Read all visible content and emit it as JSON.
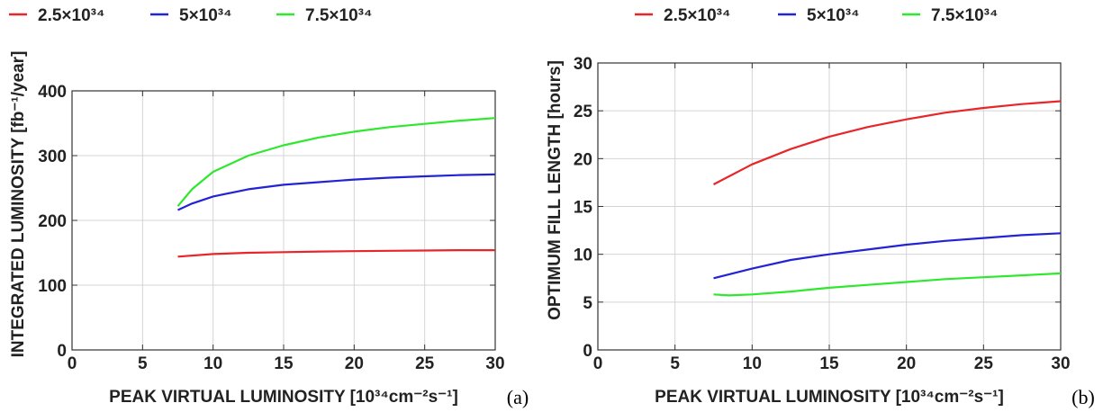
{
  "chart_data": [
    {
      "type": "line",
      "panel_label": "(a)",
      "xlabel": "PEAK VIRTUAL LUMINOSITY [10³⁴cm⁻²s⁻¹]",
      "ylabel": "INTEGRATED LUMINOSITY [fb⁻¹/year]",
      "xlim": [
        0,
        30
      ],
      "ylim": [
        0,
        400
      ],
      "xticks": [
        "0",
        "5",
        "10",
        "15",
        "20",
        "25",
        "30"
      ],
      "yticks": [
        "0",
        "100",
        "200",
        "300",
        "400"
      ],
      "grid": true,
      "legend_position": "top",
      "series": [
        {
          "name": "2.5×10³⁴",
          "color": "#e8262a",
          "x": [
            7.5,
            10,
            12.5,
            15,
            17.5,
            20,
            22.5,
            25,
            27.5,
            30
          ],
          "y": [
            144,
            148,
            150,
            151,
            152,
            152.5,
            153,
            153.5,
            154,
            154
          ]
        },
        {
          "name": "5×10³⁴",
          "color": "#2323d6",
          "x": [
            7.5,
            8.5,
            10,
            12.5,
            15,
            17.5,
            20,
            22.5,
            25,
            27.5,
            30
          ],
          "y": [
            216,
            226,
            237,
            248,
            255,
            259,
            263,
            266,
            268,
            270,
            271
          ]
        },
        {
          "name": "7.5×10³⁴",
          "color": "#2ee82e",
          "x": [
            7.5,
            8.5,
            10,
            12.5,
            15,
            17.5,
            20,
            22.5,
            25,
            27.5,
            30
          ],
          "y": [
            222,
            248,
            275,
            300,
            316,
            328,
            337,
            344,
            349,
            354,
            358
          ]
        }
      ]
    },
    {
      "type": "line",
      "panel_label": "(b)",
      "xlabel": "PEAK VIRTUAL LUMINOSITY [10³⁴cm⁻²s⁻¹]",
      "ylabel": "OPTIMUM FILL LENGTH [hours]",
      "xlim": [
        0,
        30
      ],
      "ylim": [
        0,
        30
      ],
      "xticks": [
        "0",
        "5",
        "10",
        "15",
        "20",
        "25",
        "30"
      ],
      "yticks": [
        "0",
        "5",
        "10",
        "15",
        "20",
        "25",
        "30"
      ],
      "grid": true,
      "legend_position": "top",
      "series": [
        {
          "name": "2.5×10³⁴",
          "color": "#e8262a",
          "x": [
            7.5,
            10,
            12.5,
            15,
            17.5,
            20,
            22.5,
            25,
            27.5,
            30
          ],
          "y": [
            17.3,
            19.4,
            21.0,
            22.3,
            23.3,
            24.1,
            24.8,
            25.3,
            25.7,
            26.0
          ]
        },
        {
          "name": "5×10³⁴",
          "color": "#2323d6",
          "x": [
            7.5,
            10,
            12.5,
            15,
            17.5,
            20,
            22.5,
            25,
            27.5,
            30
          ],
          "y": [
            7.5,
            8.5,
            9.4,
            10.0,
            10.5,
            11.0,
            11.4,
            11.7,
            12.0,
            12.2
          ]
        },
        {
          "name": "7.5×10³⁴",
          "color": "#2ee82e",
          "x": [
            7.5,
            8.5,
            10,
            12.5,
            15,
            17.5,
            20,
            22.5,
            25,
            27.5,
            30
          ],
          "y": [
            5.8,
            5.7,
            5.8,
            6.1,
            6.5,
            6.8,
            7.1,
            7.4,
            7.6,
            7.8,
            8.0
          ]
        }
      ]
    }
  ]
}
